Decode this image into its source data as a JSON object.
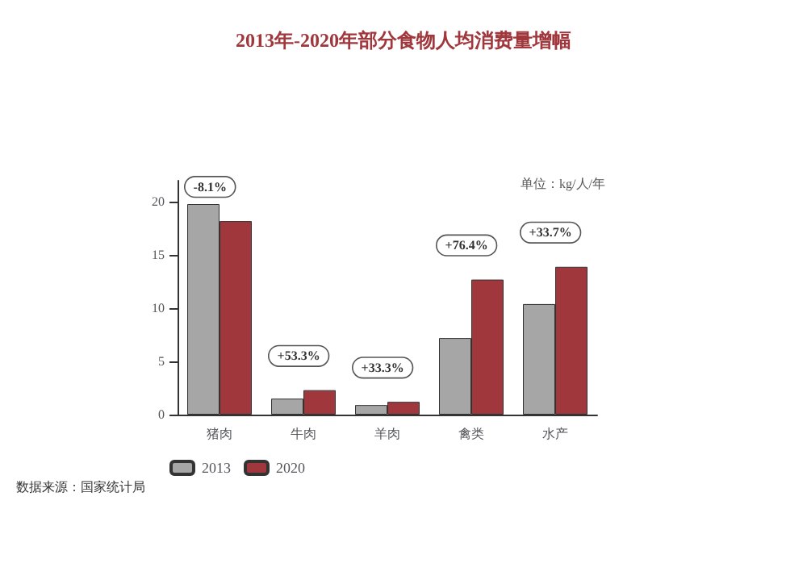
{
  "chart_data": {
    "type": "bar",
    "title": "2013年-2020年部分食物人均消费量增幅",
    "subtitle": "单位：kg/人/年",
    "categories": [
      "猪肉",
      "牛肉",
      "羊肉",
      "禽类",
      "水产"
    ],
    "series": [
      {
        "name": "2013",
        "color": "#a6a6a6",
        "values": [
          19.8,
          1.5,
          0.9,
          7.2,
          10.4
        ]
      },
      {
        "name": "2020",
        "color": "#a0373c",
        "values": [
          18.2,
          2.3,
          1.2,
          12.7,
          13.9
        ]
      }
    ],
    "ylim": [
      0,
      22
    ],
    "yticks": [
      0,
      5,
      10,
      15,
      20
    ],
    "grid": false,
    "legend": "bottom",
    "annotations": [
      {
        "text": "-8.1%",
        "x": "猪肉",
        "y": 18.2
      },
      {
        "text": "+53.3%",
        "x": "牛肉",
        "y": 2.3
      },
      {
        "text": "+33.3%",
        "x": "羊肉",
        "y": 1.2
      },
      {
        "text": "+76.4%",
        "x": "禽类",
        "y": 12.7
      },
      {
        "text": "+33.7%",
        "x": "水产",
        "y": 13.9
      },
      "数据来源：国家统计局"
    ]
  }
}
